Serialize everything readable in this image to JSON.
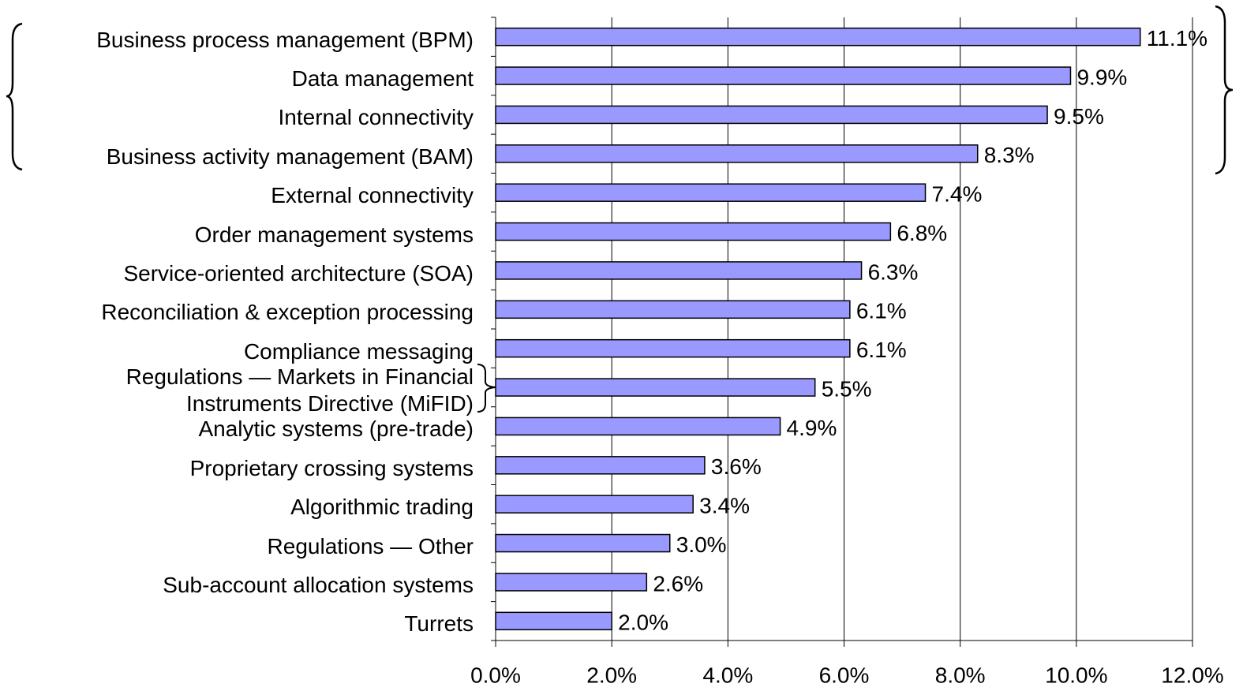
{
  "chart_data": {
    "type": "barh",
    "categories": [
      "Business process management (BPM)",
      "Data management",
      "Internal connectivity",
      "Business activity management (BAM)",
      "External connectivity",
      "Order management systems",
      "Service-oriented architecture (SOA)",
      "Reconciliation & exception processing",
      "Compliance messaging",
      "Regulations — Markets in Financial Instruments Directive (MiFID)",
      "Analytic systems (pre-trade)",
      "Proprietary crossing systems",
      "Algorithmic trading",
      "Regulations — Other",
      "Sub-account allocation systems",
      "Turrets"
    ],
    "values": [
      11.1,
      9.9,
      9.5,
      8.3,
      7.4,
      6.8,
      6.3,
      6.1,
      6.1,
      5.5,
      4.9,
      3.6,
      3.4,
      3.0,
      2.6,
      2.0
    ],
    "value_labels": [
      "11.1%",
      "9.9%",
      "9.5%",
      "8.3%",
      "7.4%",
      "6.8%",
      "6.3%",
      "6.1%",
      "6.1%",
      "5.5%",
      "4.9%",
      "3.6%",
      "3.4%",
      "3.0%",
      "2.6%",
      "2.0%"
    ],
    "color": "#9999ff",
    "xlim": [
      0,
      12
    ],
    "xticks": [
      {
        "value": 0,
        "label": "0.0%"
      },
      {
        "value": 2,
        "label": "2.0%"
      },
      {
        "value": 4,
        "label": "4.0%"
      },
      {
        "value": 6,
        "label": "6.0%"
      },
      {
        "value": 8,
        "label": "8.0%"
      },
      {
        "value": 10,
        "label": "10.0%"
      },
      {
        "value": 12,
        "label": "12.0%"
      }
    ],
    "grid": true
  }
}
